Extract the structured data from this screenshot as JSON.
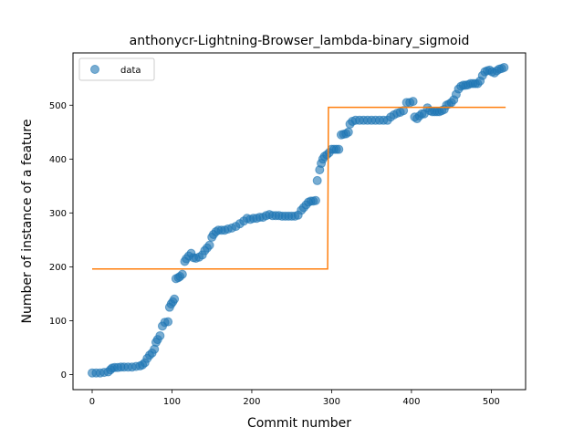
{
  "chart_data": {
    "type": "scatter",
    "title": "anthonycr-Lightning-Browser_lambda-binary_sigmoid",
    "xlabel": "Commit number",
    "ylabel": "Number of instance of a feature",
    "xlim": [
      -24,
      543
    ],
    "ylim": [
      -28,
      597
    ],
    "xticks": [
      0,
      100,
      200,
      300,
      400,
      500
    ],
    "yticks": [
      0,
      100,
      200,
      300,
      400,
      500
    ],
    "grid": false,
    "legend": {
      "location": "upper-left",
      "entries": [
        "data"
      ]
    },
    "colors": {
      "data": "#1f77b4",
      "fit": "#ff7f0e"
    },
    "series": [
      {
        "name": "data",
        "kind": "scatter",
        "points": [
          [
            0,
            3
          ],
          [
            5,
            3
          ],
          [
            10,
            3
          ],
          [
            15,
            4
          ],
          [
            20,
            5
          ],
          [
            23,
            9
          ],
          [
            25,
            12
          ],
          [
            28,
            13
          ],
          [
            32,
            13
          ],
          [
            36,
            14
          ],
          [
            40,
            14
          ],
          [
            45,
            14
          ],
          [
            50,
            14
          ],
          [
            55,
            15
          ],
          [
            60,
            16
          ],
          [
            63,
            18
          ],
          [
            66,
            22
          ],
          [
            69,
            30
          ],
          [
            72,
            36
          ],
          [
            75,
            40
          ],
          [
            78,
            47
          ],
          [
            80,
            60
          ],
          [
            82,
            65
          ],
          [
            85,
            72
          ],
          [
            88,
            90
          ],
          [
            91,
            97
          ],
          [
            95,
            98
          ],
          [
            97,
            125
          ],
          [
            99,
            131
          ],
          [
            101,
            135
          ],
          [
            103,
            140
          ],
          [
            105,
            178
          ],
          [
            108,
            180
          ],
          [
            110,
            182
          ],
          [
            113,
            186
          ],
          [
            116,
            210
          ],
          [
            118,
            215
          ],
          [
            121,
            220
          ],
          [
            124,
            225
          ],
          [
            127,
            217
          ],
          [
            130,
            216
          ],
          [
            134,
            218
          ],
          [
            138,
            222
          ],
          [
            141,
            230
          ],
          [
            144,
            235
          ],
          [
            147,
            240
          ],
          [
            150,
            255
          ],
          [
            152,
            260
          ],
          [
            155,
            265
          ],
          [
            158,
            268
          ],
          [
            162,
            268
          ],
          [
            166,
            268
          ],
          [
            170,
            270
          ],
          [
            175,
            272
          ],
          [
            180,
            275
          ],
          [
            185,
            280
          ],
          [
            190,
            285
          ],
          [
            194,
            290
          ],
          [
            198,
            288
          ],
          [
            202,
            290
          ],
          [
            206,
            290
          ],
          [
            210,
            292
          ],
          [
            214,
            292
          ],
          [
            218,
            295
          ],
          [
            222,
            297
          ],
          [
            226,
            295
          ],
          [
            230,
            295
          ],
          [
            234,
            295
          ],
          [
            238,
            294
          ],
          [
            242,
            294
          ],
          [
            246,
            294
          ],
          [
            250,
            294
          ],
          [
            254,
            294
          ],
          [
            258,
            296
          ],
          [
            262,
            305
          ],
          [
            265,
            310
          ],
          [
            268,
            315
          ],
          [
            271,
            320
          ],
          [
            274,
            322
          ],
          [
            277,
            322
          ],
          [
            280,
            323
          ],
          [
            282,
            360
          ],
          [
            285,
            380
          ],
          [
            287,
            392
          ],
          [
            289,
            400
          ],
          [
            291,
            405
          ],
          [
            294,
            408
          ],
          [
            297,
            412
          ],
          [
            300,
            418
          ],
          [
            303,
            418
          ],
          [
            306,
            418
          ],
          [
            309,
            418
          ],
          [
            312,
            445
          ],
          [
            315,
            446
          ],
          [
            318,
            447
          ],
          [
            321,
            450
          ],
          [
            323,
            465
          ],
          [
            326,
            470
          ],
          [
            330,
            472
          ],
          [
            335,
            472
          ],
          [
            340,
            472
          ],
          [
            345,
            472
          ],
          [
            350,
            472
          ],
          [
            355,
            472
          ],
          [
            360,
            472
          ],
          [
            365,
            472
          ],
          [
            370,
            472
          ],
          [
            374,
            478
          ],
          [
            378,
            482
          ],
          [
            382,
            485
          ],
          [
            386,
            487
          ],
          [
            390,
            490
          ],
          [
            394,
            505
          ],
          [
            398,
            505
          ],
          [
            402,
            507
          ],
          [
            404,
            478
          ],
          [
            407,
            475
          ],
          [
            410,
            480
          ],
          [
            413,
            484
          ],
          [
            416,
            484
          ],
          [
            420,
            495
          ],
          [
            423,
            490
          ],
          [
            426,
            488
          ],
          [
            429,
            488
          ],
          [
            432,
            488
          ],
          [
            435,
            488
          ],
          [
            438,
            490
          ],
          [
            441,
            492
          ],
          [
            444,
            500
          ],
          [
            447,
            502
          ],
          [
            450,
            505
          ],
          [
            453,
            510
          ],
          [
            456,
            520
          ],
          [
            459,
            530
          ],
          [
            462,
            535
          ],
          [
            465,
            537
          ],
          [
            468,
            537
          ],
          [
            471,
            538
          ],
          [
            474,
            540
          ],
          [
            477,
            540
          ],
          [
            480,
            540
          ],
          [
            483,
            540
          ],
          [
            486,
            545
          ],
          [
            489,
            555
          ],
          [
            492,
            562
          ],
          [
            495,
            564
          ],
          [
            498,
            565
          ],
          [
            501,
            562
          ],
          [
            504,
            560
          ],
          [
            507,
            564
          ],
          [
            510,
            567
          ],
          [
            513,
            568
          ],
          [
            516,
            570
          ]
        ]
      },
      {
        "name": "",
        "kind": "line",
        "points": [
          [
            0,
            196
          ],
          [
            295,
            196
          ],
          [
            296,
            496
          ],
          [
            518,
            496
          ]
        ]
      }
    ]
  }
}
